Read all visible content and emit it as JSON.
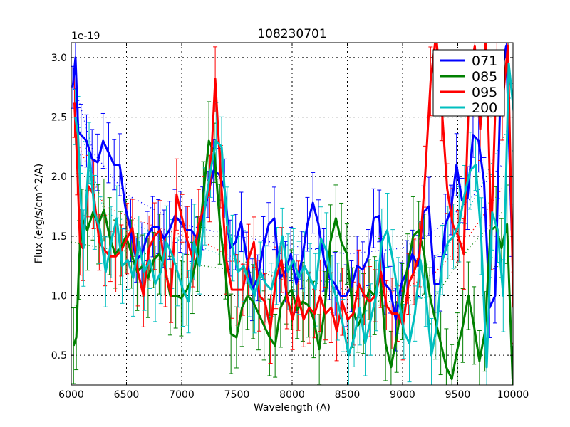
{
  "chart_data": {
    "type": "line",
    "title": "108230701",
    "xlabel": "Wavelength (A)",
    "ylabel": "Flux (erg/s/cm^2/A)",
    "y_offset_label": "1e-19",
    "xlim": [
      6000,
      10000
    ],
    "ylim": [
      0.25,
      3.125
    ],
    "xticks": [
      6000,
      6500,
      7000,
      7500,
      8000,
      8500,
      9000,
      9500,
      10000
    ],
    "yticks": [
      0.5,
      1.0,
      1.5,
      2.0,
      2.5,
      3.0
    ],
    "ytick_labels": [
      "0.5",
      "1.0",
      "1.5",
      "2.0",
      "2.5",
      "3.0"
    ],
    "grid": true,
    "legend_position": "top-right",
    "x": [
      6025,
      6050,
      6075,
      6100,
      6150,
      6200,
      6250,
      6300,
      6350,
      6400,
      6450,
      6500,
      6550,
      6600,
      6650,
      6700,
      6750,
      6800,
      6850,
      6900,
      6950,
      7000,
      7050,
      7100,
      7150,
      7200,
      7250,
      7300,
      7350,
      7400,
      7450,
      7500,
      7550,
      7600,
      7650,
      7700,
      7750,
      7800,
      7850,
      7900,
      7950,
      8000,
      8050,
      8100,
      8150,
      8200,
      8250,
      8300,
      8350,
      8400,
      8450,
      8500,
      8550,
      8600,
      8650,
      8700,
      8750,
      8800,
      8850,
      8900,
      8950,
      9000,
      9050,
      9100,
      9150,
      9200,
      9250,
      9300,
      9350,
      9400,
      9450,
      9500,
      9550,
      9600,
      9650,
      9700,
      9750,
      9800,
      9850,
      9900,
      9950,
      10000
    ],
    "series": [
      {
        "name": "071",
        "color": "#0000ff",
        "err": 0.22,
        "values": [
          2.75,
          3.0,
          2.38,
          2.35,
          2.3,
          2.15,
          2.12,
          2.3,
          2.2,
          2.1,
          2.1,
          1.75,
          1.55,
          1.3,
          1.35,
          1.5,
          1.58,
          1.58,
          1.48,
          1.55,
          1.67,
          1.62,
          1.55,
          1.55,
          1.48,
          1.65,
          1.85,
          2.05,
          2.02,
          1.9,
          1.4,
          1.45,
          1.62,
          1.32,
          1.05,
          1.15,
          1.4,
          1.6,
          1.65,
          1.15,
          1.2,
          1.35,
          1.1,
          1.3,
          1.6,
          1.78,
          1.6,
          1.3,
          1.15,
          1.1,
          1.0,
          1.0,
          1.08,
          1.25,
          1.22,
          1.32,
          1.65,
          1.67,
          1.1,
          1.05,
          0.8,
          1.1,
          1.2,
          1.35,
          1.25,
          1.7,
          1.75,
          1.1,
          1.1,
          1.6,
          1.72,
          2.1,
          1.8,
          1.82,
          2.35,
          2.3,
          1.95,
          0.9,
          1.0,
          2.8,
          3.1,
          1.55
        ],
        "model": [
          [
            6050,
            2.7
          ],
          [
            6200,
            2.2
          ],
          [
            6500,
            1.85
          ],
          [
            7000,
            1.6
          ],
          [
            7500,
            1.5
          ],
          [
            8000,
            1.42
          ],
          [
            8500,
            1.35
          ],
          [
            9000,
            1.4
          ],
          [
            9300,
            1.55
          ],
          [
            9600,
            1.8
          ],
          [
            9900,
            2.1
          ]
        ]
      },
      {
        "name": "085",
        "color": "#008000",
        "err": 0.28,
        "values": [
          0.58,
          0.65,
          1.3,
          1.65,
          1.55,
          1.7,
          1.6,
          1.72,
          1.5,
          1.35,
          1.4,
          1.5,
          1.35,
          1.2,
          1.25,
          1.15,
          1.3,
          1.35,
          1.25,
          1.0,
          1.0,
          0.98,
          1.05,
          1.15,
          1.35,
          1.85,
          2.3,
          2.2,
          1.6,
          1.2,
          0.68,
          0.65,
          0.9,
          1.0,
          0.95,
          0.85,
          0.75,
          0.65,
          0.58,
          0.9,
          1.0,
          1.05,
          0.88,
          0.95,
          0.92,
          0.8,
          0.55,
          0.9,
          1.45,
          1.65,
          1.45,
          1.35,
          0.9,
          0.75,
          0.85,
          1.05,
          1.0,
          1.2,
          0.6,
          0.4,
          0.65,
          0.95,
          1.25,
          1.5,
          1.55,
          1.35,
          1.0,
          0.8,
          0.6,
          0.4,
          0.3,
          0.55,
          0.75,
          1.0,
          0.75,
          0.45,
          0.7,
          1.55,
          1.58,
          1.4,
          1.6,
          0.3
        ],
        "model": [
          [
            6000,
            1.45
          ],
          [
            6300,
            1.4
          ],
          [
            6700,
            1.35
          ],
          [
            7200,
            1.25
          ],
          [
            7600,
            1.2
          ],
          [
            8000,
            1.15
          ],
          [
            8500,
            1.05
          ],
          [
            8800,
            0.95
          ],
          [
            9000,
            0.95
          ],
          [
            9300,
            1.0
          ],
          [
            9600,
            1.4
          ],
          [
            9900,
            1.7
          ]
        ]
      },
      {
        "name": "095",
        "color": "#ff0000",
        "err": 0.25,
        "values": [
          2.62,
          2.1,
          1.45,
          1.4,
          1.92,
          1.85,
          1.45,
          1.38,
          1.33,
          1.33,
          1.38,
          1.48,
          1.57,
          1.2,
          1.0,
          1.4,
          1.5,
          1.55,
          1.2,
          1.0,
          1.85,
          1.65,
          1.45,
          1.3,
          1.6,
          1.75,
          1.9,
          2.82,
          2.0,
          1.3,
          1.05,
          1.05,
          1.05,
          1.3,
          1.45,
          1.0,
          0.95,
          0.72,
          1.15,
          1.3,
          1.0,
          0.8,
          1.0,
          0.8,
          0.9,
          0.85,
          1.0,
          0.85,
          0.9,
          0.7,
          0.95,
          0.8,
          0.85,
          1.1,
          1.0,
          0.95,
          1.0,
          1.2,
          0.92,
          0.85,
          0.85,
          0.75,
          1.1,
          1.2,
          1.35,
          2.0,
          2.8,
          3.2,
          2.6,
          1.9,
          1.6,
          1.5,
          1.35,
          2.8,
          3.1,
          2.4,
          3.2,
          1.5,
          3.0,
          2.6,
          3.1,
          0.9
        ],
        "model": [
          [
            6050,
            2.3
          ],
          [
            6300,
            1.75
          ],
          [
            6700,
            1.6
          ],
          [
            7200,
            1.45
          ],
          [
            7700,
            1.2
          ],
          [
            8200,
            1.05
          ],
          [
            8600,
            1.0
          ],
          [
            9000,
            1.05
          ],
          [
            9300,
            1.2
          ],
          [
            9600,
            1.5
          ],
          [
            9900,
            1.9
          ]
        ]
      },
      {
        "name": "200",
        "color": "#00bfbf",
        "err": 0.27,
        "values": [
          2.5,
          2.35,
          1.8,
          1.4,
          2.2,
          1.7,
          1.55,
          1.2,
          1.45,
          1.65,
          1.25,
          1.3,
          1.15,
          1.45,
          1.2,
          1.3,
          1.1,
          1.2,
          1.45,
          1.35,
          1.2,
          1.05,
          0.95,
          1.45,
          1.25,
          1.75,
          2.05,
          2.3,
          2.25,
          1.6,
          1.4,
          1.2,
          1.25,
          1.1,
          1.0,
          1.2,
          1.1,
          1.05,
          1.25,
          1.5,
          1.2,
          1.3,
          1.15,
          1.25,
          1.15,
          1.05,
          1.48,
          1.38,
          1.1,
          0.95,
          0.75,
          0.5,
          0.65,
          0.9,
          0.6,
          0.8,
          1.0,
          1.45,
          1.55,
          1.3,
          1.0,
          0.7,
          0.6,
          0.85,
          1.3,
          1.0,
          0.5,
          0.75,
          1.3,
          1.45,
          1.5,
          1.6,
          1.85,
          2.05,
          2.1,
          1.5,
          0.4,
          1.7,
          1.55,
          1.0,
          2.95,
          2.5
        ],
        "model": [
          [
            6050,
            2.5
          ],
          [
            6300,
            1.7
          ],
          [
            6700,
            1.55
          ],
          [
            7200,
            1.4
          ],
          [
            7600,
            1.25
          ],
          [
            8000,
            1.15
          ],
          [
            8500,
            1.1
          ],
          [
            8800,
            1.05
          ],
          [
            9000,
            1.1
          ],
          [
            9400,
            1.4
          ],
          [
            9700,
            1.9
          ],
          [
            9950,
            2.4
          ]
        ]
      }
    ]
  }
}
